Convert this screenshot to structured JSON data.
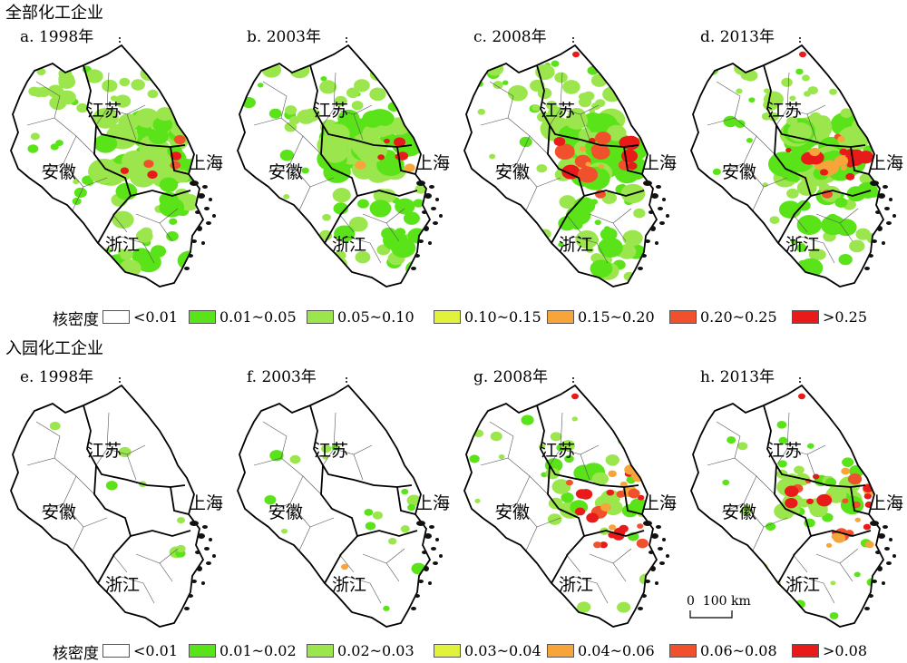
{
  "section1_title": "全部化工企业",
  "section2_title": "入园化工企业",
  "provinces": {
    "js": "江苏",
    "ah": "安徽",
    "sh": "上海",
    "zj": "浙江"
  },
  "panels": [
    {
      "id": "a",
      "label": "a. 1998年",
      "level": 1,
      "set": "all"
    },
    {
      "id": "b",
      "label": "b. 2003年",
      "level": 1,
      "set": "all"
    },
    {
      "id": "c",
      "label": "c. 2008年",
      "level": 3,
      "set": "all"
    },
    {
      "id": "d",
      "label": "d. 2013年",
      "level": 3,
      "set": "all"
    },
    {
      "id": "e",
      "label": "e. 1998年",
      "level": 0,
      "set": "park"
    },
    {
      "id": "f",
      "label": "f. 2003年",
      "level": 0,
      "set": "park"
    },
    {
      "id": "g",
      "label": "g. 2008年",
      "level": 2,
      "set": "park"
    },
    {
      "id": "h",
      "label": "h. 2013年",
      "level": 2,
      "set": "park"
    }
  ],
  "legend1": {
    "title": "核密度",
    "items": [
      {
        "label": "<0.01",
        "color": "#ffffff"
      },
      {
        "label": "0.01~0.05",
        "color": "#59e318"
      },
      {
        "label": "0.05~0.10",
        "color": "#9ae64c"
      },
      {
        "label": "0.10~0.15",
        "color": "#e1f23a"
      },
      {
        "label": "0.15~0.20",
        "color": "#f7a53a"
      },
      {
        "label": "0.20~0.25",
        "color": "#f0512c"
      },
      {
        "label": ">0.25",
        "color": "#e81a1a"
      }
    ]
  },
  "legend2": {
    "title": "核密度",
    "items": [
      {
        "label": "<0.01",
        "color": "#ffffff"
      },
      {
        "label": "0.01~0.02",
        "color": "#59e318"
      },
      {
        "label": "0.02~0.03",
        "color": "#9ae64c"
      },
      {
        "label": "0.03~0.04",
        "color": "#e1f23a"
      },
      {
        "label": "0.04~0.06",
        "color": "#f7a53a"
      },
      {
        "label": "0.06~0.08",
        "color": "#f0512c"
      },
      {
        "label": ">0.08",
        "color": "#e81a1a"
      }
    ]
  },
  "scale_label": "0  100 km"
}
